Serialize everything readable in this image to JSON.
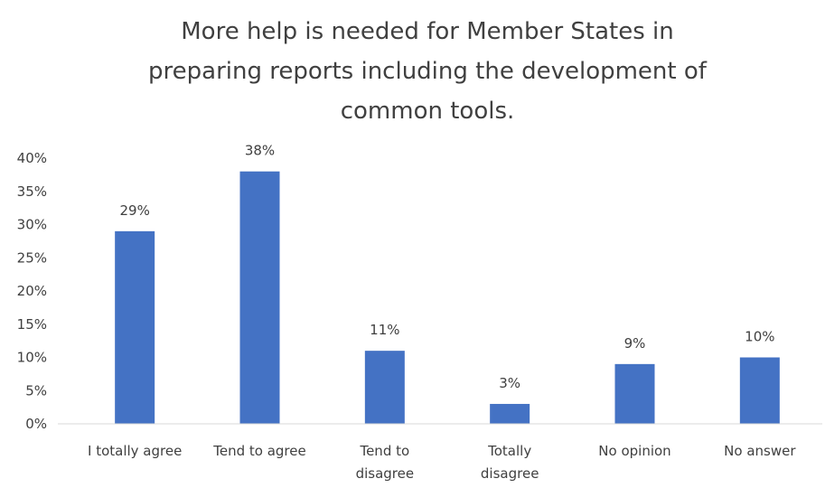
{
  "chart_data": {
    "type": "bar",
    "title_lines": [
      "More help is needed for Member States in",
      "preparing reports including the development of",
      "common tools."
    ],
    "categories": [
      [
        "I totally agree"
      ],
      [
        "Tend to agree"
      ],
      [
        "Tend to",
        "disagree"
      ],
      [
        "Totally",
        "disagree"
      ],
      [
        "No opinion"
      ],
      [
        "No answer"
      ]
    ],
    "values": [
      29,
      38,
      11,
      3,
      9,
      10
    ],
    "value_labels": [
      "29%",
      "38%",
      "11%",
      "3%",
      "9%",
      "10%"
    ],
    "y_ticks": [
      "0%",
      "5%",
      "10%",
      "15%",
      "20%",
      "25%",
      "30%",
      "35%",
      "40%"
    ],
    "ylim": [
      0,
      40
    ],
    "bar_color": "#4472C4",
    "axis_color": "#D9D9D9",
    "grid": false,
    "legend": "none"
  }
}
